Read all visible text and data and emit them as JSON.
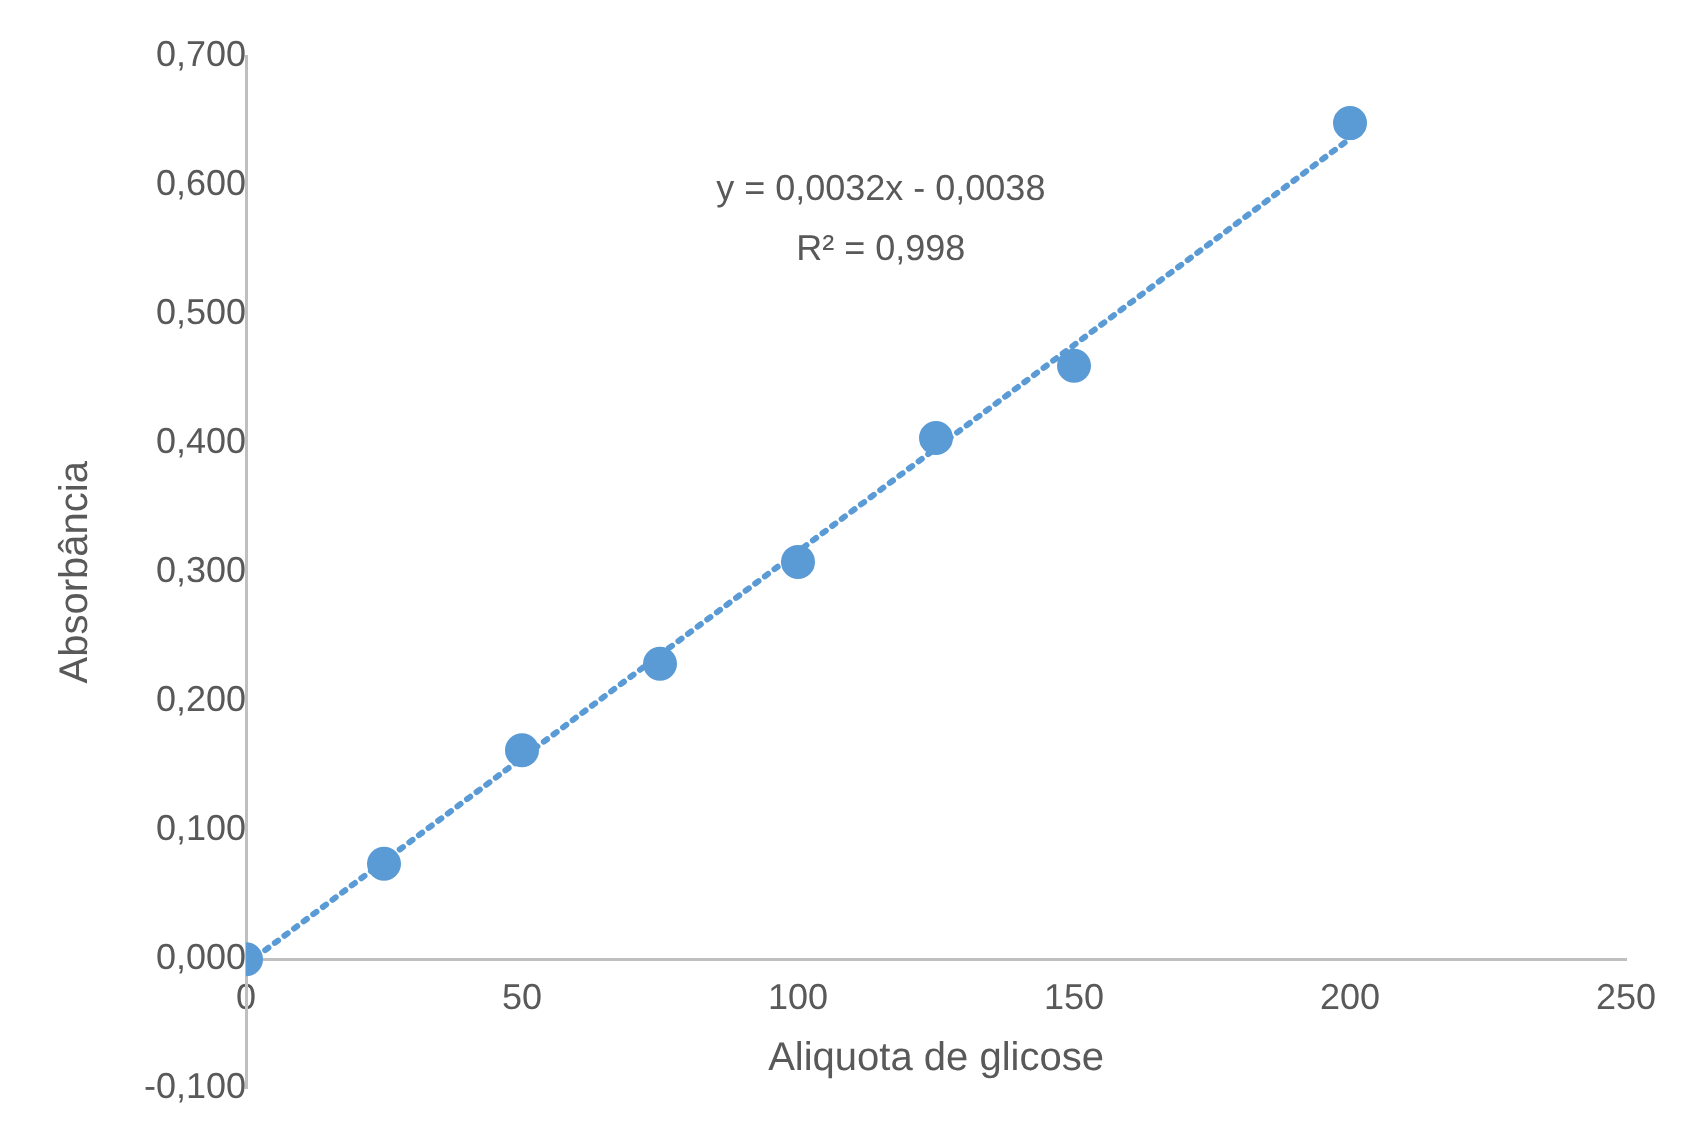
{
  "chart_data": {
    "type": "scatter",
    "xlabel": "Aliquota de glicose",
    "ylabel": "Absorbância",
    "x": [
      0,
      25,
      50,
      75,
      100,
      125,
      150,
      200
    ],
    "series": [
      {
        "type": "scatter",
        "color": "#5b9bd5",
        "values": [
          0,
          0.074,
          0.162,
          0.229,
          0.308,
          0.404,
          0.46,
          0.648
        ]
      },
      {
        "type": "line",
        "color": "#5b9bd5",
        "x": [
          0,
          200
        ],
        "values": [
          -0.004,
          0.636
        ],
        "line_style": "dotted",
        "marker": "none"
      }
    ],
    "xlim": [
      0,
      250
    ],
    "xticks": [
      0,
      50,
      100,
      150,
      200,
      250
    ],
    "ylim": [
      -0.1,
      0.7
    ],
    "yticks": [
      {
        "value": -0.1,
        "label": "-0,100"
      },
      {
        "value": 0,
        "label": "0,000"
      },
      {
        "value": 0.1,
        "label": "0,100"
      },
      {
        "value": 0.2,
        "label": "0,200"
      },
      {
        "value": 0.3,
        "label": "0,300"
      },
      {
        "value": 0.4,
        "label": "0,400"
      },
      {
        "value": 0.5,
        "label": "0,500"
      },
      {
        "value": 0.6,
        "label": "0,600"
      },
      {
        "value": 0.7,
        "label": "0,700"
      }
    ],
    "annotations": [
      "y = 0,0032x - 0,0038",
      "R² = 0,998"
    ],
    "marker": "circle",
    "grid": false,
    "legend": false
  }
}
